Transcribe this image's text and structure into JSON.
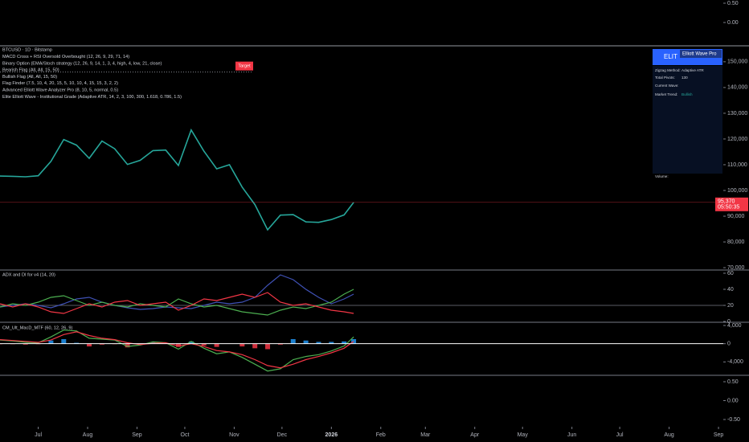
{
  "chart_data": [
    {
      "type": "line",
      "ylim": [
        -0.604,
        0.583
      ],
      "yticks": [
        {
          "value": 0.5,
          "label": "0.50"
        },
        {
          "value": 0,
          "label": "0.00"
        }
      ]
    },
    {
      "type": "line",
      "title": "BTCUSD · 1D · Bitstamp",
      "indicators": [
        "MACD Cross + RSI Oversold Overbought (12, 26, 9, 29, 71, 14)",
        "Binary Option (EMA/Stoch strategy (12, 26, 9, 14, 1, 3, 4, high, 4, low, 21, close)",
        "Bearish Flag (All, All, 15, 50)",
        "Bullish Flag (All, All, 15, 50)",
        "Flag Finder (7.5, 10, 4, 20, 15, 5, 10, 10, 4, 15, 15, 3, 2, 2)",
        "Advanced Elliott Wave Analyzer Pro (8, 10, 5, normal, 0.5)",
        "Elite Elliott Wave - Institutional Grade (Adaptive ATR, 14, 2, 3, 100, 300, 1.618, 0.786, 1.5)"
      ],
      "x": [
        0,
        8,
        16,
        24,
        32,
        40,
        48,
        56,
        64,
        72,
        80,
        88,
        96,
        104,
        112,
        120,
        128,
        136,
        144,
        152,
        160,
        168,
        176,
        184,
        192,
        200,
        208,
        216,
        222
      ],
      "xlim": [
        0,
        454
      ],
      "xticks": [
        {
          "value": 24,
          "label": "Jul"
        },
        {
          "value": 55,
          "label": "Aug"
        },
        {
          "value": 86,
          "label": "Sep"
        },
        {
          "value": 116,
          "label": "Oct"
        },
        {
          "value": 147,
          "label": "Nov"
        },
        {
          "value": 177,
          "label": "Dec"
        },
        {
          "value": 208,
          "label": "2026"
        },
        {
          "value": 239,
          "label": "Feb"
        },
        {
          "value": 267,
          "label": "Mar"
        },
        {
          "value": 298,
          "label": "Apr"
        },
        {
          "value": 328,
          "label": "May"
        },
        {
          "value": 359,
          "label": "Jun"
        },
        {
          "value": 389,
          "label": "Jul"
        },
        {
          "value": 420,
          "label": "Aug"
        },
        {
          "value": 451,
          "label": "Sep"
        }
      ],
      "series": [
        {
          "color": "#26a69a",
          "values": [
            105600,
            105500,
            105300,
            105700,
            111300,
            119800,
            117600,
            112500,
            119200,
            116200,
            110100,
            111700,
            115500,
            115700,
            109700,
            123500,
            115300,
            108400,
            110000,
            101300,
            94500,
            84700,
            90400,
            90600,
            87800,
            87600,
            88700,
            90500,
            95370
          ]
        }
      ],
      "last_price_label": "95,370",
      "countdown": "05:50:35",
      "target": {
        "label": "Target",
        "value": 146000
      },
      "ylim": [
        69400,
        156200
      ],
      "yticks": [
        {
          "value": 150000,
          "label": "150,000"
        },
        {
          "value": 140000,
          "label": "140,000"
        },
        {
          "value": 130000,
          "label": "130,000"
        },
        {
          "value": 120000,
          "label": "120,000"
        },
        {
          "value": 110000,
          "label": "110,000"
        },
        {
          "value": 100000,
          "label": "100,000"
        },
        {
          "value": 90000,
          "label": "90,000"
        },
        {
          "value": 80000,
          "label": "80,000"
        },
        {
          "value": 70000,
          "label": "70,000"
        }
      ]
    },
    {
      "type": "line",
      "title": "ADX and DI for v4 (14, 20)",
      "hline": 20,
      "series": [
        {
          "color": "#3f51b5",
          "values": [
            18,
            20,
            22,
            20,
            17,
            22,
            28,
            30,
            24,
            20,
            17,
            15,
            16,
            18,
            17,
            16,
            20,
            24,
            22,
            24,
            30,
            45,
            58,
            52,
            40,
            30,
            22,
            28,
            34
          ]
        },
        {
          "color": "#4caf50",
          "values": [
            18,
            22,
            20,
            24,
            30,
            32,
            26,
            20,
            24,
            20,
            18,
            22,
            20,
            18,
            28,
            22,
            18,
            20,
            16,
            12,
            10,
            8,
            14,
            18,
            16,
            20,
            24,
            34,
            40
          ]
        },
        {
          "color": "#f23645",
          "values": [
            22,
            18,
            22,
            18,
            12,
            10,
            16,
            22,
            18,
            24,
            26,
            20,
            22,
            24,
            14,
            20,
            28,
            26,
            30,
            34,
            30,
            36,
            24,
            20,
            22,
            18,
            14,
            12,
            10
          ]
        }
      ],
      "ylim": [
        0,
        63
      ],
      "yticks": [
        60,
        40,
        20,
        0
      ]
    },
    {
      "type": "line",
      "title": "CM_Ult_MacD_MTF (60, 12, 26, 9)",
      "series": [
        {
          "kind": "bar",
          "color_up": "#2196f3",
          "color_down": "#f23645",
          "values": [
            -100,
            -100,
            -200,
            -100,
            700,
            1000,
            200,
            -600,
            -200,
            -100,
            -800,
            -100,
            300,
            0,
            -700,
            500,
            -400,
            -700,
            0,
            -600,
            -1000,
            -1200,
            -200,
            1000,
            700,
            400,
            400,
            500,
            1000
          ]
        },
        {
          "color": "#4caf50",
          "values": [
            800,
            600,
            300,
            200,
            1500,
            3000,
            2800,
            1200,
            1000,
            800,
            -600,
            -300,
            400,
            200,
            -1200,
            500,
            -1000,
            -2200,
            -1800,
            -3000,
            -4500,
            -6000,
            -5500,
            -3500,
            -2800,
            -2400,
            -1600,
            -500,
            1500
          ]
        },
        {
          "color": "#f23645",
          "values": [
            900,
            700,
            500,
            300,
            800,
            2000,
            2600,
            1800,
            1200,
            900,
            200,
            -200,
            100,
            200,
            -500,
            0,
            -600,
            -1500,
            -1800,
            -2400,
            -3500,
            -4800,
            -5300,
            -4500,
            -3500,
            -2800,
            -2000,
            -1000,
            500
          ]
        }
      ],
      "ylim": [
        -6760,
        4530
      ],
      "yticks": [
        {
          "value": 4000,
          "label": "4,000"
        },
        0,
        {
          "value": -4000,
          "label": "-4,000"
        }
      ]
    },
    {
      "type": "line",
      "ylim": [
        -0.67,
        0.649
      ],
      "yticks": [
        {
          "value": 0.5,
          "label": "0.50"
        },
        {
          "value": 0,
          "label": "0.00"
        },
        {
          "value": -0.5,
          "label": "-0.50"
        }
      ]
    }
  ],
  "panel": {
    "brand": "ELIT",
    "title": "Elliott Wave Pro",
    "rows": [
      [
        "Zigzag Method:",
        "Adaptive ATR"
      ],
      [
        "Total Pivots:",
        "130"
      ],
      [
        "Current Wave:"
      ],
      [
        "Market Trend:",
        "Bullish"
      ],
      [
        "Volume:"
      ]
    ]
  }
}
